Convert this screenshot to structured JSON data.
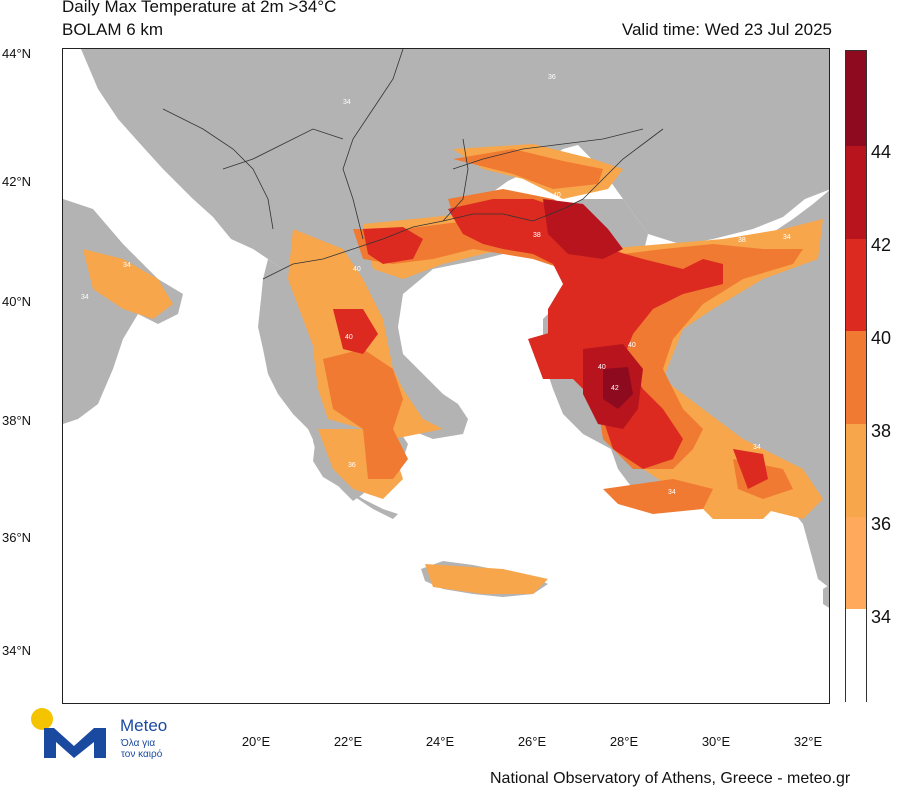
{
  "header": {
    "title": "Daily Max Temperature at 2m >34°C",
    "subtitle": "BOLAM 6 km",
    "valid_time": "Valid time: Wed 23 Jul 2025"
  },
  "axes": {
    "lat_labels": [
      "44°N",
      "42°N",
      "40°N",
      "38°N",
      "36°N",
      "34°N"
    ],
    "lon_labels": [
      "20°E",
      "22°E",
      "24°E",
      "26°E",
      "28°E",
      "30°E",
      "32°E"
    ]
  },
  "colorbar": {
    "labels": [
      "44",
      "42",
      "40",
      "38",
      "36",
      "34"
    ],
    "colors": {
      "c44": "#8e0a1e",
      "c42": "#b8141e",
      "c40": "#dc2a20",
      "c38": "#f07a32",
      "c36": "#f7a64c",
      "c34": "#ffffff",
      "land": "#b3b3b3"
    }
  },
  "contour_labels": [
    "34",
    "36",
    "38",
    "40",
    "42"
  ],
  "logo": {
    "name": "Meteo",
    "tagline_1": "Όλα για",
    "tagline_2": "τον καιρό"
  },
  "footer": "National Observatory of Athens, Greece - meteo.gr"
}
